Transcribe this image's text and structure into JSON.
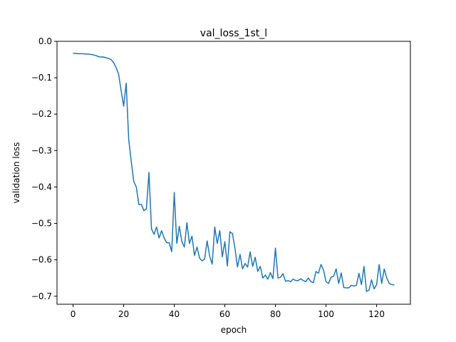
{
  "chart_data": {
    "type": "line",
    "title": "val_loss_1st_l",
    "xlabel": "epoch",
    "ylabel": "validation loss",
    "xlim": [
      -6.35,
      133.35
    ],
    "ylim": [
      -0.722,
      0.0
    ],
    "xticks": [
      0,
      20,
      40,
      60,
      80,
      100,
      120
    ],
    "xtick_labels": [
      "0",
      "20",
      "40",
      "60",
      "80",
      "100",
      "120"
    ],
    "yticks": [
      0.0,
      -0.1,
      -0.2,
      -0.3,
      -0.4,
      -0.5,
      -0.6,
      -0.7
    ],
    "ytick_labels": [
      "0.0",
      "−0.1",
      "−0.2",
      "−0.3",
      "−0.4",
      "−0.5",
      "−0.6",
      "−0.7"
    ],
    "grid": false,
    "legend": false,
    "series": [
      {
        "color": "#1f77b4",
        "x": [
          0,
          1,
          2,
          3,
          4,
          5,
          6,
          7,
          8,
          9,
          10,
          11,
          12,
          13,
          14,
          15,
          16,
          17,
          18,
          19,
          20,
          21,
          22,
          23,
          24,
          25,
          26,
          27,
          28,
          29,
          30,
          31,
          32,
          33,
          34,
          35,
          36,
          37,
          38,
          39,
          40,
          41,
          42,
          43,
          44,
          45,
          46,
          47,
          48,
          49,
          50,
          51,
          52,
          53,
          54,
          55,
          56,
          57,
          58,
          59,
          60,
          61,
          62,
          63,
          64,
          65,
          66,
          67,
          68,
          69,
          70,
          71,
          72,
          73,
          74,
          75,
          76,
          77,
          78,
          79,
          80,
          81,
          82,
          83,
          84,
          85,
          86,
          87,
          88,
          89,
          90,
          91,
          92,
          93,
          94,
          95,
          96,
          97,
          98,
          99,
          100,
          101,
          102,
          103,
          104,
          105,
          106,
          107,
          108,
          109,
          110,
          111,
          112,
          113,
          114,
          115,
          116,
          117,
          118,
          119,
          120,
          121,
          122,
          123,
          124,
          125,
          126,
          127
        ],
        "y": [
          -0.033,
          -0.033,
          -0.034,
          -0.034,
          -0.034,
          -0.035,
          -0.035,
          -0.036,
          -0.037,
          -0.039,
          -0.042,
          -0.043,
          -0.043,
          -0.045,
          -0.047,
          -0.05,
          -0.058,
          -0.072,
          -0.09,
          -0.135,
          -0.178,
          -0.115,
          -0.27,
          -0.33,
          -0.385,
          -0.4,
          -0.448,
          -0.448,
          -0.465,
          -0.46,
          -0.36,
          -0.515,
          -0.53,
          -0.51,
          -0.54,
          -0.52,
          -0.54,
          -0.553,
          -0.553,
          -0.578,
          -0.415,
          -0.555,
          -0.508,
          -0.55,
          -0.565,
          -0.498,
          -0.555,
          -0.535,
          -0.588,
          -0.565,
          -0.595,
          -0.603,
          -0.598,
          -0.548,
          -0.59,
          -0.612,
          -0.51,
          -0.555,
          -0.52,
          -0.592,
          -0.55,
          -0.617,
          -0.523,
          -0.528,
          -0.568,
          -0.62,
          -0.585,
          -0.625,
          -0.61,
          -0.62,
          -0.578,
          -0.618,
          -0.593,
          -0.632,
          -0.618,
          -0.65,
          -0.642,
          -0.653,
          -0.635,
          -0.652,
          -0.568,
          -0.65,
          -0.648,
          -0.638,
          -0.659,
          -0.657,
          -0.66,
          -0.653,
          -0.657,
          -0.657,
          -0.652,
          -0.657,
          -0.66,
          -0.65,
          -0.66,
          -0.663,
          -0.632,
          -0.637,
          -0.613,
          -0.628,
          -0.66,
          -0.665,
          -0.648,
          -0.645,
          -0.625,
          -0.665,
          -0.636,
          -0.676,
          -0.677,
          -0.677,
          -0.67,
          -0.672,
          -0.67,
          -0.637,
          -0.668,
          -0.618,
          -0.687,
          -0.683,
          -0.655,
          -0.68,
          -0.668,
          -0.613,
          -0.665,
          -0.625,
          -0.65,
          -0.665,
          -0.668,
          -0.669
        ]
      }
    ]
  }
}
